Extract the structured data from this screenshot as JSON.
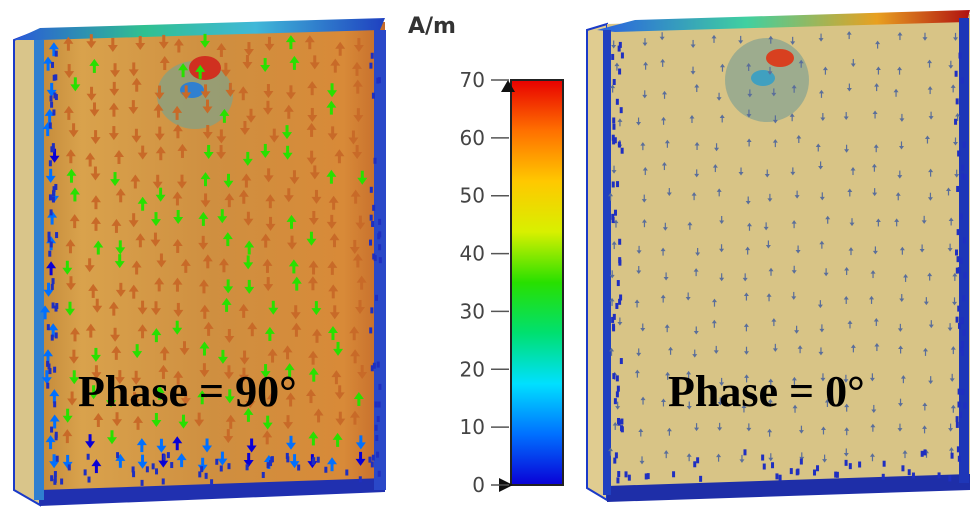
{
  "colorbar": {
    "unit": "A/m",
    "ticks": [
      "0",
      "10",
      "20",
      "30",
      "40",
      "50",
      "60",
      "70"
    ],
    "min": 0,
    "max": 70,
    "gradient_colors": [
      "#0a00d6",
      "#0070ff",
      "#00e0ff",
      "#00e070",
      "#28e000",
      "#d8f000",
      "#ffc800",
      "#ff7000",
      "#e80000"
    ]
  },
  "panels": {
    "left": {
      "label": "Phase = 90°",
      "field_level": 0.55
    },
    "right": {
      "label": "Phase = 0°",
      "field_level": 0.05
    }
  }
}
